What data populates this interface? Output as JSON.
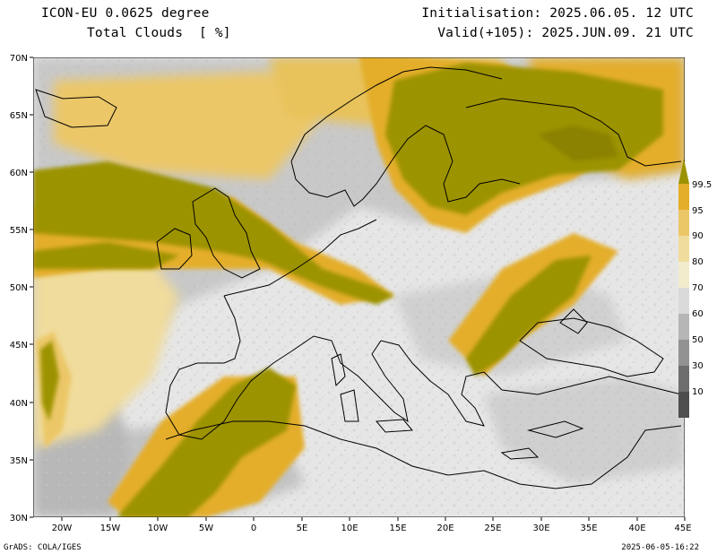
{
  "header": {
    "model": "ICON-EU 0.0625 degree",
    "variable": "Total Clouds  [ %]",
    "initialisation": "Initialisation: 2025.06.05. 12 UTC",
    "valid": "Valid(+105): 2025.JUN.09. 21 UTC"
  },
  "axes": {
    "lat_labels": [
      "70N",
      "65N",
      "60N",
      "55N",
      "50N",
      "45N",
      "40N",
      "35N",
      "30N"
    ],
    "lon_labels": [
      "20W",
      "15W",
      "10W",
      "5W",
      "0",
      "5E",
      "10E",
      "15E",
      "20E",
      "25E",
      "30E",
      "35E",
      "40E",
      "45E"
    ]
  },
  "legend": {
    "labels": [
      "99.5",
      "95",
      "90",
      "80",
      "70",
      "60",
      "50",
      "30",
      "10"
    ],
    "colors": [
      "#9c9300",
      "#e4ae2a",
      "#ecc767",
      "#f0dc9c",
      "#f2eccc",
      "#dadada",
      "#b6b6b6",
      "#929292",
      "#6e6e6e",
      "#4e4e4e"
    ]
  },
  "palette": {
    "clear": "#e6e6e6",
    "overcast": "#9c9300",
    "coast": "#000000"
  },
  "footer": {
    "credit": "GrADS: COLA/IGES",
    "timestamp": "2025-06-05-16:22"
  }
}
